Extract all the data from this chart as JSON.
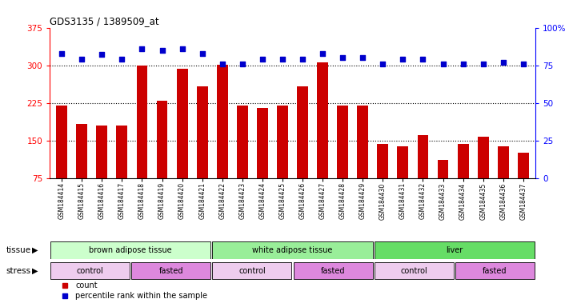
{
  "title": "GDS3135 / 1389509_at",
  "samples": [
    "GSM184414",
    "GSM184415",
    "GSM184416",
    "GSM184417",
    "GSM184418",
    "GSM184419",
    "GSM184420",
    "GSM184421",
    "GSM184422",
    "GSM184423",
    "GSM184424",
    "GSM184425",
    "GSM184426",
    "GSM184427",
    "GSM184428",
    "GSM184429",
    "GSM184430",
    "GSM184431",
    "GSM184432",
    "GSM184433",
    "GSM184434",
    "GSM184435",
    "GSM184436",
    "GSM184437"
  ],
  "counts": [
    220,
    183,
    180,
    180,
    300,
    230,
    293,
    258,
    301,
    220,
    215,
    220,
    258,
    305,
    220,
    220,
    143,
    138,
    160,
    112,
    143,
    158,
    138,
    125
  ],
  "percentile_ranks": [
    83,
    79,
    82,
    79,
    86,
    85,
    86,
    83,
    76,
    76,
    79,
    79,
    79,
    83,
    80,
    80,
    76,
    79,
    79,
    76,
    76,
    76,
    77,
    76
  ],
  "ylim_left": [
    75,
    375
  ],
  "ylim_right": [
    0,
    100
  ],
  "yticks_left": [
    75,
    150,
    225,
    300,
    375
  ],
  "yticks_right": [
    0,
    25,
    50,
    75,
    100
  ],
  "bar_color": "#CC0000",
  "dot_color": "#0000CC",
  "tissue_groups": [
    {
      "label": "brown adipose tissue",
      "start": 0,
      "end": 8,
      "color": "#ccffcc"
    },
    {
      "label": "white adipose tissue",
      "start": 8,
      "end": 16,
      "color": "#99ee99"
    },
    {
      "label": "liver",
      "start": 16,
      "end": 24,
      "color": "#66dd66"
    }
  ],
  "stress_groups": [
    {
      "label": "control",
      "start": 0,
      "end": 4,
      "color": "#eeccee"
    },
    {
      "label": "fasted",
      "start": 4,
      "end": 8,
      "color": "#dd88dd"
    },
    {
      "label": "control",
      "start": 8,
      "end": 12,
      "color": "#eeccee"
    },
    {
      "label": "fasted",
      "start": 12,
      "end": 16,
      "color": "#dd88dd"
    },
    {
      "label": "control",
      "start": 16,
      "end": 20,
      "color": "#eeccee"
    },
    {
      "label": "fasted",
      "start": 20,
      "end": 24,
      "color": "#dd88dd"
    }
  ],
  "tissue_label": "tissue",
  "stress_label": "stress",
  "legend_count_label": "count",
  "legend_percentile_label": "percentile rank within the sample",
  "background_color": "#ffffff"
}
